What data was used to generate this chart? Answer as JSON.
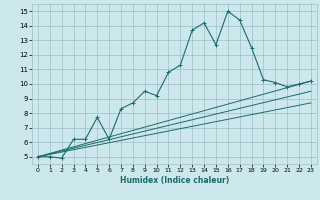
{
  "xlabel": "Humidex (Indice chaleur)",
  "ylabel": "",
  "bg_color": "#cce8ec",
  "grid_color": "#9dbfc4",
  "line_color": "#1a6b6b",
  "xlim": [
    -0.5,
    23.5
  ],
  "ylim": [
    4.5,
    15.5
  ],
  "xticks": [
    0,
    1,
    2,
    3,
    4,
    5,
    6,
    7,
    8,
    9,
    10,
    11,
    12,
    13,
    14,
    15,
    16,
    17,
    18,
    19,
    20,
    21,
    22,
    23
  ],
  "yticks": [
    5,
    6,
    7,
    8,
    9,
    10,
    11,
    12,
    13,
    14,
    15
  ],
  "main_line": {
    "x": [
      0,
      1,
      2,
      3,
      4,
      5,
      6,
      7,
      8,
      9,
      10,
      11,
      12,
      13,
      14,
      15,
      16,
      17,
      18,
      19,
      20,
      21,
      22,
      23
    ],
    "y": [
      5,
      5,
      4.9,
      6.2,
      6.2,
      7.7,
      6.2,
      8.3,
      8.7,
      9.5,
      9.2,
      10.8,
      11.3,
      13.7,
      14.2,
      12.7,
      15.0,
      14.4,
      12.5,
      10.3,
      10.1,
      9.8,
      10.0,
      10.2
    ]
  },
  "line2": {
    "x": [
      0,
      23
    ],
    "y": [
      5,
      10.2
    ]
  },
  "line3": {
    "x": [
      0,
      23
    ],
    "y": [
      5,
      9.5
    ]
  },
  "line4": {
    "x": [
      0,
      23
    ],
    "y": [
      5,
      8.7
    ]
  }
}
